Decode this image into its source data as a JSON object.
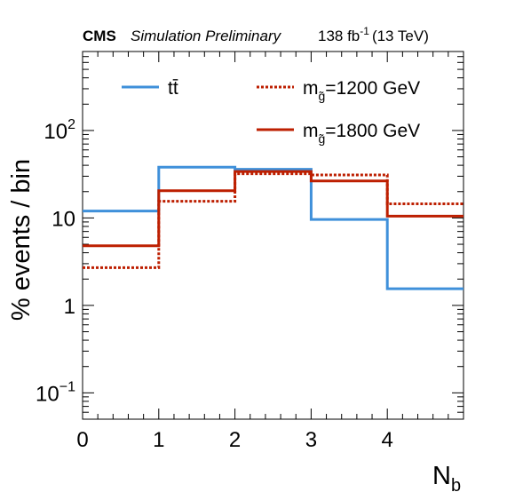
{
  "header": {
    "experiment": "CMS",
    "status": "Simulation Preliminary",
    "lumi_value": "138 fb",
    "lumi_exponent": "-1",
    "energy": "(13 TeV)"
  },
  "colors": {
    "ttbar": "#3f90da",
    "gluino": "#bd1f01"
  },
  "chart_data": {
    "type": "line",
    "step": true,
    "xlabel_main": "N",
    "xlabel_sub": "b",
    "ylabel": "% events / bin",
    "xlim": [
      0,
      5
    ],
    "ylim": [
      0.05,
      800
    ],
    "yscale": "log",
    "bin_edges": [
      0,
      1,
      2,
      3,
      4,
      5
    ],
    "x_ticks": [
      {
        "value": 0,
        "label": "0"
      },
      {
        "value": 1,
        "label": "1"
      },
      {
        "value": 2,
        "label": "2"
      },
      {
        "value": 3,
        "label": "3"
      },
      {
        "value": 4,
        "label": "4"
      }
    ],
    "y_ticks": [
      {
        "value": 0.1,
        "label": "10",
        "sup": "−1"
      },
      {
        "value": 1,
        "label": "1",
        "sup": ""
      },
      {
        "value": 10,
        "label": "10",
        "sup": ""
      },
      {
        "value": 100,
        "label": "10",
        "sup": "2"
      }
    ],
    "series": [
      {
        "name": "tt̄",
        "label_main": "tt̄",
        "label_sub": "",
        "label_rest": "",
        "color_key": "ttbar",
        "style": "solid",
        "values": [
          12,
          38,
          36,
          9.6,
          1.55
        ]
      },
      {
        "name": "m_g̃=1200 GeV",
        "label_main": "m",
        "label_sub": "g̃",
        "label_rest": "=1200 GeV",
        "color_key": "gluino",
        "style": "dotted",
        "values": [
          2.7,
          15.5,
          32,
          31,
          14.5
        ]
      },
      {
        "name": "m_g̃=1800 GeV",
        "label_main": "m",
        "label_sub": "g̃",
        "label_rest": "=1800 GeV",
        "color_key": "gluino",
        "style": "solid",
        "values": [
          4.8,
          20.5,
          34,
          26.5,
          10.5
        ]
      }
    ]
  }
}
